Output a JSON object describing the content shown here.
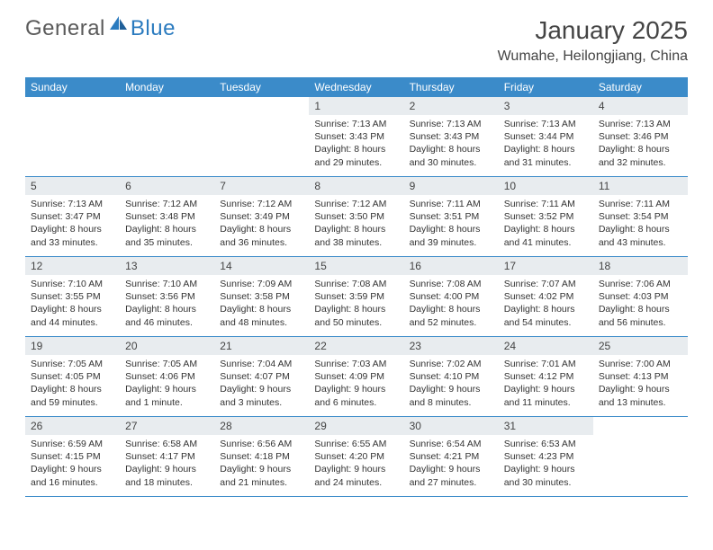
{
  "logo": {
    "text1": "General",
    "text2": "Blue",
    "text1_color": "#5a5a5a",
    "text2_color": "#2b7bbf"
  },
  "title": "January 2025",
  "location": "Wumahe, Heilongjiang, China",
  "colors": {
    "header_bg": "#3b8bc9",
    "header_text": "#ffffff",
    "daynum_bg": "#e8ecef",
    "daynum_text": "#444444",
    "body_text": "#333333",
    "rule": "#3b8bc9"
  },
  "day_names": [
    "Sunday",
    "Monday",
    "Tuesday",
    "Wednesday",
    "Thursday",
    "Friday",
    "Saturday"
  ],
  "weeks": [
    [
      null,
      null,
      null,
      {
        "n": "1",
        "sr": "7:13 AM",
        "ss": "3:43 PM",
        "dl": "8 hours and 29 minutes."
      },
      {
        "n": "2",
        "sr": "7:13 AM",
        "ss": "3:43 PM",
        "dl": "8 hours and 30 minutes."
      },
      {
        "n": "3",
        "sr": "7:13 AM",
        "ss": "3:44 PM",
        "dl": "8 hours and 31 minutes."
      },
      {
        "n": "4",
        "sr": "7:13 AM",
        "ss": "3:46 PM",
        "dl": "8 hours and 32 minutes."
      }
    ],
    [
      {
        "n": "5",
        "sr": "7:13 AM",
        "ss": "3:47 PM",
        "dl": "8 hours and 33 minutes."
      },
      {
        "n": "6",
        "sr": "7:12 AM",
        "ss": "3:48 PM",
        "dl": "8 hours and 35 minutes."
      },
      {
        "n": "7",
        "sr": "7:12 AM",
        "ss": "3:49 PM",
        "dl": "8 hours and 36 minutes."
      },
      {
        "n": "8",
        "sr": "7:12 AM",
        "ss": "3:50 PM",
        "dl": "8 hours and 38 minutes."
      },
      {
        "n": "9",
        "sr": "7:11 AM",
        "ss": "3:51 PM",
        "dl": "8 hours and 39 minutes."
      },
      {
        "n": "10",
        "sr": "7:11 AM",
        "ss": "3:52 PM",
        "dl": "8 hours and 41 minutes."
      },
      {
        "n": "11",
        "sr": "7:11 AM",
        "ss": "3:54 PM",
        "dl": "8 hours and 43 minutes."
      }
    ],
    [
      {
        "n": "12",
        "sr": "7:10 AM",
        "ss": "3:55 PM",
        "dl": "8 hours and 44 minutes."
      },
      {
        "n": "13",
        "sr": "7:10 AM",
        "ss": "3:56 PM",
        "dl": "8 hours and 46 minutes."
      },
      {
        "n": "14",
        "sr": "7:09 AM",
        "ss": "3:58 PM",
        "dl": "8 hours and 48 minutes."
      },
      {
        "n": "15",
        "sr": "7:08 AM",
        "ss": "3:59 PM",
        "dl": "8 hours and 50 minutes."
      },
      {
        "n": "16",
        "sr": "7:08 AM",
        "ss": "4:00 PM",
        "dl": "8 hours and 52 minutes."
      },
      {
        "n": "17",
        "sr": "7:07 AM",
        "ss": "4:02 PM",
        "dl": "8 hours and 54 minutes."
      },
      {
        "n": "18",
        "sr": "7:06 AM",
        "ss": "4:03 PM",
        "dl": "8 hours and 56 minutes."
      }
    ],
    [
      {
        "n": "19",
        "sr": "7:05 AM",
        "ss": "4:05 PM",
        "dl": "8 hours and 59 minutes."
      },
      {
        "n": "20",
        "sr": "7:05 AM",
        "ss": "4:06 PM",
        "dl": "9 hours and 1 minute."
      },
      {
        "n": "21",
        "sr": "7:04 AM",
        "ss": "4:07 PM",
        "dl": "9 hours and 3 minutes."
      },
      {
        "n": "22",
        "sr": "7:03 AM",
        "ss": "4:09 PM",
        "dl": "9 hours and 6 minutes."
      },
      {
        "n": "23",
        "sr": "7:02 AM",
        "ss": "4:10 PM",
        "dl": "9 hours and 8 minutes."
      },
      {
        "n": "24",
        "sr": "7:01 AM",
        "ss": "4:12 PM",
        "dl": "9 hours and 11 minutes."
      },
      {
        "n": "25",
        "sr": "7:00 AM",
        "ss": "4:13 PM",
        "dl": "9 hours and 13 minutes."
      }
    ],
    [
      {
        "n": "26",
        "sr": "6:59 AM",
        "ss": "4:15 PM",
        "dl": "9 hours and 16 minutes."
      },
      {
        "n": "27",
        "sr": "6:58 AM",
        "ss": "4:17 PM",
        "dl": "9 hours and 18 minutes."
      },
      {
        "n": "28",
        "sr": "6:56 AM",
        "ss": "4:18 PM",
        "dl": "9 hours and 21 minutes."
      },
      {
        "n": "29",
        "sr": "6:55 AM",
        "ss": "4:20 PM",
        "dl": "9 hours and 24 minutes."
      },
      {
        "n": "30",
        "sr": "6:54 AM",
        "ss": "4:21 PM",
        "dl": "9 hours and 27 minutes."
      },
      {
        "n": "31",
        "sr": "6:53 AM",
        "ss": "4:23 PM",
        "dl": "9 hours and 30 minutes."
      },
      null
    ]
  ],
  "labels": {
    "sunrise": "Sunrise:",
    "sunset": "Sunset:",
    "daylight": "Daylight:"
  }
}
